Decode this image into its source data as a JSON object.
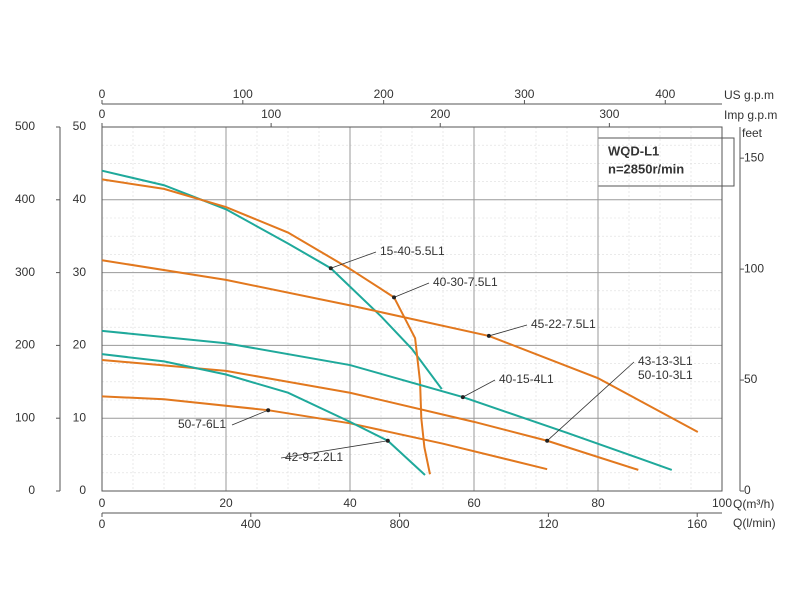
{
  "chart_data": {
    "type": "line",
    "box_title": "WQD-L1",
    "box_subtitle": "n=2850r/min",
    "x_label": "Q(m³/h)",
    "x2_label": "Q(l/min)",
    "top_label": "US g.p.m",
    "top2_label": "Imp g.p.m",
    "y2_label": "feet",
    "xlim": [
      0,
      100
    ],
    "xticks": [
      0,
      20,
      40,
      60,
      80,
      100
    ],
    "x2lim": [
      0,
      1666.67
    ],
    "x2ticks": [
      0,
      400,
      800,
      {
        "value": 1200,
        "label": "120"
      },
      {
        "value": 1600,
        "label": "160"
      }
    ],
    "topxlim": [
      0,
      440.29
    ],
    "topxticks": [
      0,
      100,
      200,
      300,
      400
    ],
    "top2xlim": [
      0,
      366.6
    ],
    "top2xticks": [
      0,
      100,
      200,
      300
    ],
    "ylim": [
      0,
      50
    ],
    "yticks": [
      0,
      10,
      20,
      30,
      40,
      50
    ],
    "y0lim": [
      0,
      500
    ],
    "y0ticks": [
      0,
      100,
      200,
      300,
      400,
      500
    ],
    "y2lim": [
      0,
      164.04
    ],
    "y2ticks": [
      0,
      50,
      100,
      150
    ],
    "grid": true,
    "series": [
      {
        "name": "15-40-5.5L1",
        "color": "#1fa99b",
        "x": [
          0,
          10,
          20,
          30,
          36.9,
          45,
          50,
          54.8
        ],
        "values": [
          44,
          42,
          38.7,
          34,
          30.6,
          24,
          19.5,
          14
        ]
      },
      {
        "name": "40-30-7.5L1",
        "color": "#e2781e",
        "x": [
          0,
          10,
          20,
          30,
          40,
          47.1,
          50.5,
          51.3,
          51.5,
          52,
          52.9
        ],
        "values": [
          42.8,
          41.5,
          39,
          35.5,
          30.5,
          26.6,
          21,
          15,
          10,
          6,
          2.3
        ]
      },
      {
        "name": "45-22-7.5L1",
        "color": "#e2781e",
        "x": [
          0,
          20,
          40,
          62.4,
          80,
          96.1
        ],
        "values": [
          31.7,
          29,
          25.5,
          21.3,
          15.5,
          8.1
        ]
      },
      {
        "name": "40-15-4L1",
        "color": "#1fa99b",
        "x": [
          0,
          20,
          40,
          58.2,
          75,
          91.9
        ],
        "values": [
          22,
          20.3,
          17.3,
          12.9,
          8,
          2.9
        ]
      },
      {
        "name": "43-13-3L1",
        "color": "#e2781e",
        "x": [
          0,
          20,
          40,
          60,
          71.8,
          86.5
        ],
        "values": [
          18,
          16.5,
          13.5,
          9.5,
          6.9,
          2.9
        ]
      },
      {
        "name": "50-7-6L1",
        "color": "#e2781e",
        "x": [
          0,
          10,
          26.8,
          40,
          55,
          71.8
        ],
        "values": [
          13,
          12.6,
          11.1,
          9.3,
          6.5,
          3
        ]
      },
      {
        "name": "42-9-2.2L1",
        "color": "#1fa99b",
        "x": [
          0,
          10,
          20,
          30,
          40,
          46.1,
          52.1
        ],
        "values": [
          18.8,
          17.8,
          16,
          13.5,
          9.5,
          6.9,
          2.2
        ]
      }
    ],
    "annotations": [
      "50-10-3L1"
    ]
  }
}
